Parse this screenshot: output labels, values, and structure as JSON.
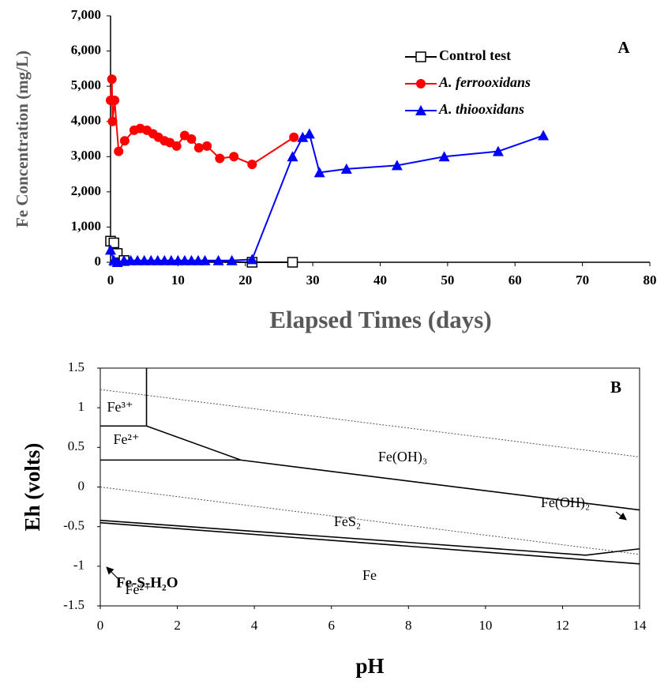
{
  "chart_data": [
    {
      "type": "line",
      "panel_label": "A",
      "x_label": "Elapsed Times (days)",
      "y_label": "Fe Concentration (mg/L)",
      "xlim": [
        0,
        80
      ],
      "xticks": [
        0,
        10,
        20,
        30,
        40,
        50,
        60,
        70,
        80
      ],
      "ylim": [
        0,
        7000
      ],
      "yticks": [
        0,
        {
          "value": 1000,
          "label": "1,000"
        },
        {
          "value": 2000,
          "label": "2,000"
        },
        {
          "value": 3000,
          "label": "3,000"
        },
        {
          "value": 4000,
          "label": "4,000"
        },
        {
          "value": 5000,
          "label": "5,000"
        },
        {
          "value": 6000,
          "label": "6,000"
        },
        {
          "value": 7000,
          "label": "7,000"
        }
      ],
      "legend": "upper right",
      "series": [
        {
          "name": "Control test",
          "color": "#000000",
          "marker": "square",
          "x": [
            0,
            0.5,
            1,
            2,
            21,
            27
          ],
          "values": [
            600,
            550,
            250,
            50,
            0,
            0
          ]
        },
        {
          "name": "A. ferrooxidans",
          "color": "#ff0000",
          "marker": "circle",
          "x": [
            0,
            0.2,
            0.3,
            0.6,
            1.2,
            2.1,
            3.5,
            4.4,
            5.4,
            6.3,
            7.1,
            8,
            8.8,
            9.8,
            11,
            12,
            13.1,
            14.3,
            16.2,
            18.3,
            21,
            27.2
          ],
          "values": [
            4600,
            5200,
            4000,
            4600,
            3150,
            3450,
            3750,
            3800,
            3750,
            3650,
            3550,
            3450,
            3400,
            3300,
            3600,
            3500,
            3250,
            3300,
            2950,
            3000,
            2780,
            3550
          ]
        },
        {
          "name": "A. thiooxidans",
          "color": "#0000ff",
          "marker": "triangle",
          "x": [
            0,
            0.5,
            1,
            2,
            3,
            4,
            5,
            6,
            7,
            8,
            9,
            10,
            11,
            12,
            13,
            14,
            16,
            18,
            21,
            27,
            28.5,
            29.5,
            31,
            35,
            42.5,
            49.5,
            57.5,
            64.2
          ],
          "values": [
            350,
            50,
            0,
            50,
            50,
            50,
            50,
            50,
            50,
            50,
            50,
            50,
            50,
            50,
            50,
            50,
            50,
            50,
            80,
            3000,
            3550,
            3650,
            2550,
            2650,
            2750,
            3000,
            3150,
            3600
          ]
        }
      ]
    },
    {
      "type": "phase",
      "panel_label": "B",
      "x_label": "pH",
      "y_label": "Eh (volts)",
      "xlim": [
        0,
        14
      ],
      "xticks": [
        0,
        2,
        4,
        6,
        8,
        10,
        12,
        14
      ],
      "ylim": [
        -1.5,
        1.5
      ],
      "yticks": [
        -1.5,
        -1,
        -0.5,
        0,
        0.5,
        1,
        1.5
      ],
      "boundaries": [
        {
          "style": "solid",
          "x": [
            0,
            1.2
          ],
          "y": [
            0.77,
            0.77
          ]
        },
        {
          "style": "solid",
          "x": [
            1.2,
            1.2
          ],
          "y": [
            0.77,
            1.5
          ]
        },
        {
          "style": "solid",
          "x": [
            1.2,
            3.65,
            14
          ],
          "y": [
            0.77,
            0.34,
            -0.29
          ]
        },
        {
          "style": "solid",
          "x": [
            0,
            3.65
          ],
          "y": [
            0.34,
            0.34
          ]
        },
        {
          "style": "solid",
          "x": [
            0,
            14
          ],
          "y": [
            -0.45,
            -0.97
          ]
        },
        {
          "style": "solid",
          "x": [
            0,
            12.6,
            14
          ],
          "y": [
            -0.42,
            -0.86,
            -0.78
          ]
        },
        {
          "style": "dashed",
          "x": [
            0,
            14
          ],
          "y": [
            1.23,
            0.38
          ]
        },
        {
          "style": "dashed",
          "x": [
            0,
            14
          ],
          "y": [
            0,
            -0.85
          ]
        }
      ],
      "regions": [
        "Fe³⁺",
        "Fe²⁺",
        "Fe(OH)₃",
        "FeS₂",
        "Fe(OH)₂",
        "Fe²⁺",
        "Fe"
      ],
      "system_label": "Fe-S-H₂O"
    }
  ]
}
